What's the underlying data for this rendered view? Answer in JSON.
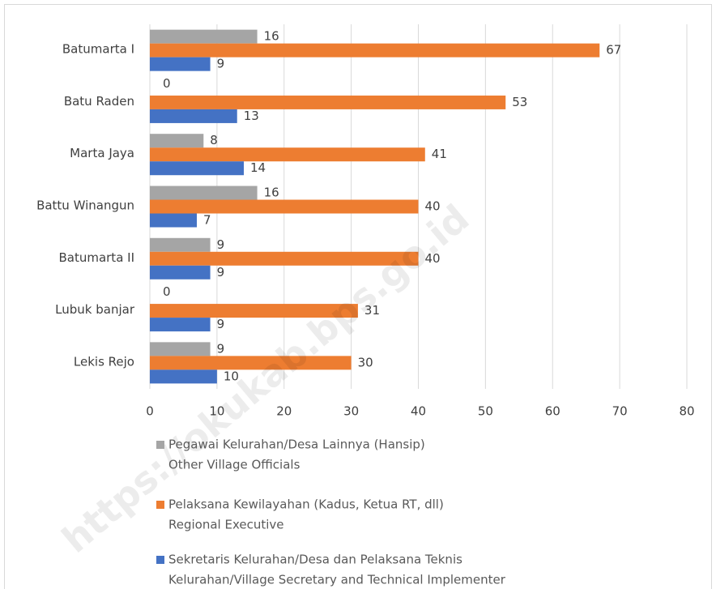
{
  "chart_data": {
    "type": "bar",
    "orientation": "horizontal",
    "categories": [
      "Batumarta I",
      "Batu Raden",
      "Marta Jaya",
      "Battu Winangun",
      "Batumarta II",
      "Lubuk banjar",
      "Lekis Rejo"
    ],
    "series": [
      {
        "name": [
          "Pegawai Kelurahan/Desa Lainnya  (Hansip)",
          "Other Village Officials"
        ],
        "color": "#a5a5a5",
        "values": [
          16,
          0,
          8,
          16,
          9,
          0,
          9
        ]
      },
      {
        "name": [
          "Pelaksana Kewilayahan (Kadus, Ketua RT, dll)",
          "Regional Executive"
        ],
        "color": "#ed7d31",
        "values": [
          67,
          53,
          41,
          40,
          40,
          31,
          30
        ]
      },
      {
        "name": [
          "Sekretaris Kelurahan/Desa dan Pelaksana Teknis",
          "Kelurahan/Village Secretary and Technical Implementer"
        ],
        "color": "#4472c4",
        "values": [
          9,
          13,
          14,
          7,
          9,
          9,
          10
        ]
      }
    ],
    "xlim": [
      0,
      80
    ],
    "xticks": [
      0,
      10,
      20,
      30,
      40,
      50,
      60,
      70,
      80
    ],
    "grid": true,
    "watermark": "https://okukab.bps.go.id"
  }
}
